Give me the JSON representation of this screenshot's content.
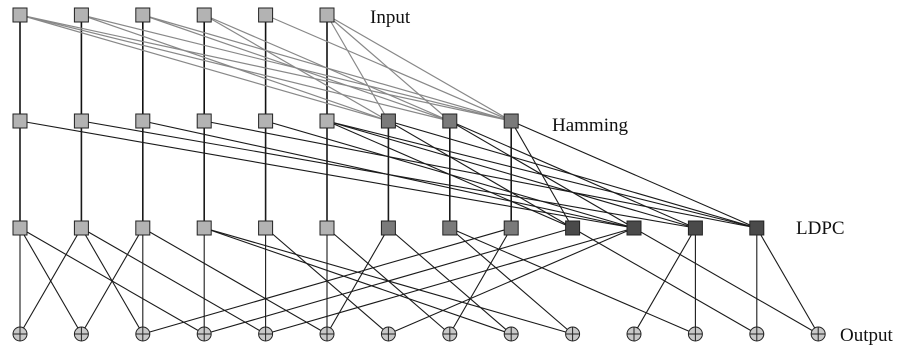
{
  "labels": {
    "input": "Input",
    "hamming": "Hamming",
    "ldpc": "LDPC",
    "output": "Output"
  },
  "colors": {
    "node_light": "#b3b3b3",
    "node_mid": "#7a7a7a",
    "node_dark": "#4a4a4a",
    "node_stroke": "#222222",
    "edge_vertical": "#111111",
    "edge_input_hamming": "#888888",
    "edge_dark": "#1a1a1a",
    "xor_fill": "#c8c8c8"
  },
  "layers": {
    "input": {
      "count": 6,
      "shades": [
        "light",
        "light",
        "light",
        "light",
        "light",
        "light"
      ]
    },
    "hamming": {
      "count": 9,
      "shades": [
        "light",
        "light",
        "light",
        "light",
        "light",
        "light",
        "mid",
        "mid",
        "mid"
      ]
    },
    "ldpc": {
      "count": 13,
      "shades": [
        "light",
        "light",
        "light",
        "light",
        "light",
        "light",
        "mid",
        "mid",
        "mid",
        "dark",
        "dark",
        "dark",
        "dark"
      ]
    },
    "output": {
      "count": 14
    }
  },
  "edges": {
    "input_hamming": [
      [
        0,
        0
      ],
      [
        1,
        1
      ],
      [
        2,
        2
      ],
      [
        3,
        3
      ],
      [
        4,
        4
      ],
      [
        5,
        5
      ],
      [
        0,
        6
      ],
      [
        0,
        7
      ],
      [
        0,
        8
      ],
      [
        1,
        6
      ],
      [
        1,
        8
      ],
      [
        2,
        7
      ],
      [
        2,
        8
      ],
      [
        3,
        6
      ],
      [
        3,
        7
      ],
      [
        4,
        8
      ],
      [
        5,
        6
      ],
      [
        5,
        7
      ],
      [
        5,
        8
      ]
    ],
    "hamming_ldpc": [
      [
        0,
        0
      ],
      [
        1,
        1
      ],
      [
        2,
        2
      ],
      [
        3,
        3
      ],
      [
        4,
        4
      ],
      [
        5,
        5
      ],
      [
        6,
        6
      ],
      [
        7,
        7
      ],
      [
        8,
        8
      ],
      [
        0,
        10
      ],
      [
        1,
        11
      ],
      [
        2,
        10
      ],
      [
        3,
        12
      ],
      [
        4,
        10
      ],
      [
        5,
        9
      ],
      [
        5,
        11
      ],
      [
        5,
        12
      ],
      [
        6,
        9
      ],
      [
        6,
        12
      ],
      [
        7,
        10
      ],
      [
        7,
        11
      ],
      [
        8,
        9
      ],
      [
        8,
        12
      ]
    ],
    "ldpc_output": [
      [
        0,
        0
      ],
      [
        0,
        1
      ],
      [
        0,
        3
      ],
      [
        1,
        0
      ],
      [
        1,
        2
      ],
      [
        1,
        4
      ],
      [
        2,
        1
      ],
      [
        2,
        2
      ],
      [
        2,
        5
      ],
      [
        3,
        3
      ],
      [
        3,
        8
      ],
      [
        3,
        9
      ],
      [
        4,
        4
      ],
      [
        4,
        6
      ],
      [
        5,
        5
      ],
      [
        5,
        7
      ],
      [
        6,
        5
      ],
      [
        6,
        8
      ],
      [
        7,
        9
      ],
      [
        7,
        11
      ],
      [
        8,
        2
      ],
      [
        8,
        7
      ],
      [
        9,
        3
      ],
      [
        9,
        12
      ],
      [
        10,
        4
      ],
      [
        10,
        6
      ],
      [
        10,
        13
      ],
      [
        11,
        10
      ],
      [
        11,
        11
      ],
      [
        12,
        12
      ],
      [
        12,
        13
      ]
    ]
  }
}
